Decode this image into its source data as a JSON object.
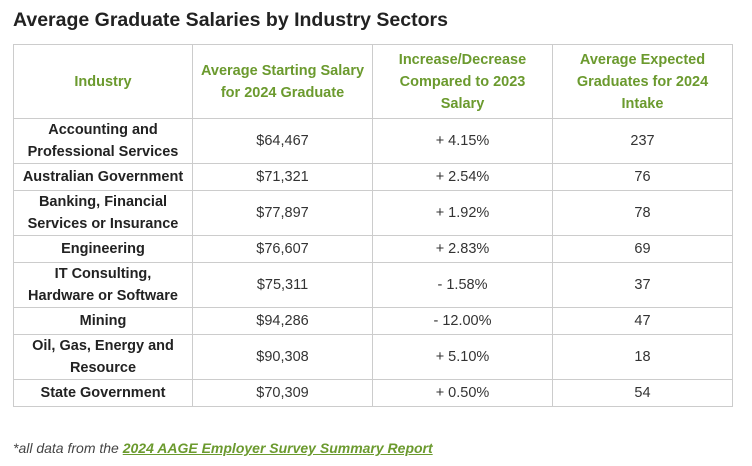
{
  "title": "Average Graduate Salaries by Industry Sectors",
  "columns": [
    "Industry",
    "Average Starting Salary for 2024 Graduate",
    "Increase/Decrease Compared to 2023 Salary",
    "Average Expected Graduates for 2024 Intake"
  ],
  "rows": [
    {
      "industry": "Accounting and Professional Services",
      "salary": "$64,467",
      "change": "+ 4.15%",
      "graduates": "237"
    },
    {
      "industry": "Australian Government",
      "salary": "$71,321",
      "change": "+ 2.54%",
      "graduates": "76"
    },
    {
      "industry": "Banking, Financial Services or Insurance",
      "salary": "$77,897",
      "change": "+ 1.92%",
      "graduates": "78"
    },
    {
      "industry": "Engineering",
      "salary": "$76,607",
      "change": "+ 2.83%",
      "graduates": "69"
    },
    {
      "industry": "IT Consulting, Hardware or Software",
      "salary": "$75,311",
      "change": "- 1.58%",
      "graduates": "37"
    },
    {
      "industry": "Mining",
      "salary": "$94,286",
      "change": "- 12.00%",
      "graduates": "47"
    },
    {
      "industry": "Oil, Gas, Energy and Resource",
      "salary": "$90,308",
      "change": "+ 5.10%",
      "graduates": "18"
    },
    {
      "industry": "State Government",
      "salary": "$70,309",
      "change": "+ 0.50%",
      "graduates": "54"
    }
  ],
  "footnote": {
    "prefix": "*all data from the ",
    "link_text": "2024 AAGE Employer Survey Summary Report"
  },
  "colors": {
    "accent": "#6b9a2e",
    "border": "#cccccc"
  }
}
